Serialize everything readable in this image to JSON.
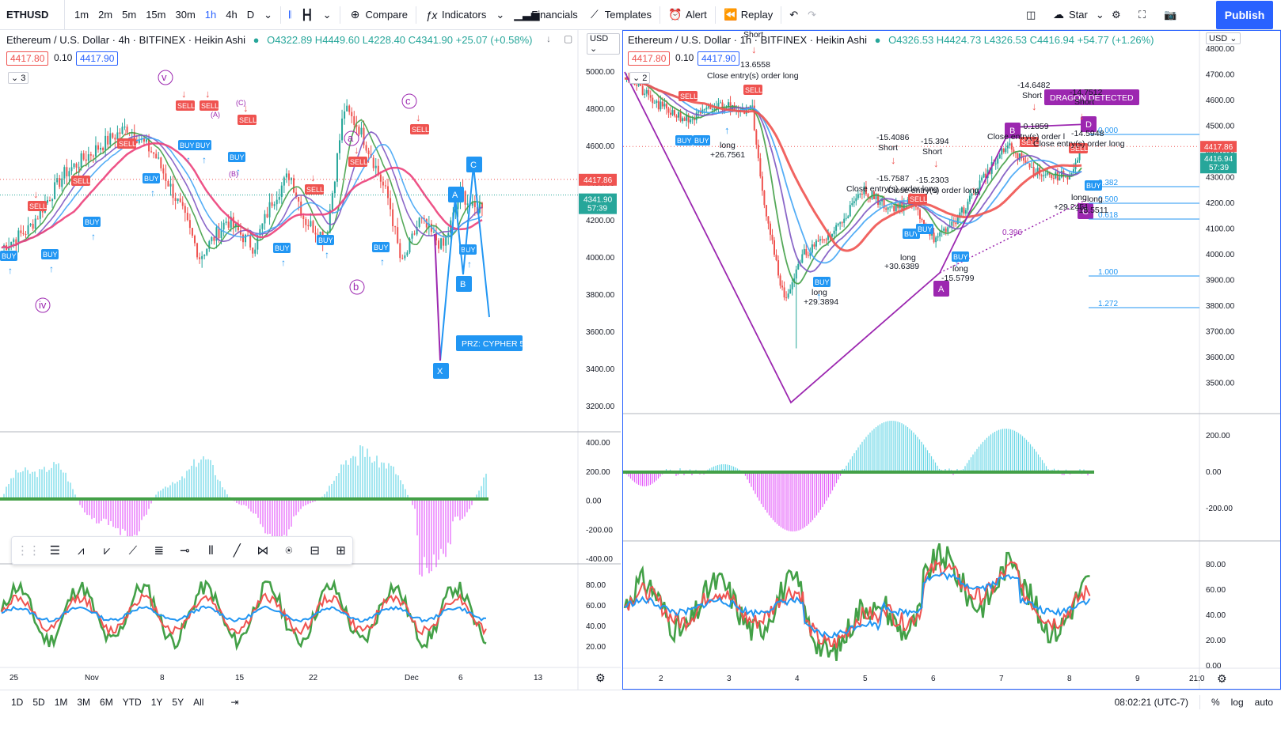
{
  "toolbar": {
    "symbol": "ETHUSD",
    "intervals": [
      "1m",
      "2m",
      "5m",
      "15m",
      "30m",
      "1h",
      "4h",
      "D"
    ],
    "active_interval": "1h",
    "compare": "Compare",
    "indicators": "Indicators",
    "financials": "Financials",
    "templates": "Templates",
    "alert": "Alert",
    "replay": "Replay",
    "star": "Star",
    "publish": "Publish"
  },
  "left_chart": {
    "title": "Ethereum / U.S. Dollar · 4h · BITFINEX · Heikin Ashi",
    "ohlc": "O4322.89 H4449.60 L4228.40 C4341.90 +25.07 (+0.58%)",
    "bid": "4417.80",
    "spread": "0.10",
    "ask": "4417.90",
    "collapse_count": "3",
    "currency": "USD",
    "price_axis": [
      "5000.00",
      "4800.00",
      "4600.00",
      "4400.00",
      "4200.00",
      "4000.00",
      "3800.00",
      "3600.00",
      "3400.00",
      "3200.00"
    ],
    "last_price": "4417.86",
    "last_close": "4341.90",
    "countdown": "57:39",
    "osc_axis": [
      "400.00",
      "200.00",
      "0.00",
      "-200.00",
      "-400.00"
    ],
    "rsi_axis": [
      "80.00",
      "60.00",
      "40.00",
      "20.00"
    ],
    "time_axis": [
      "25",
      "Nov",
      "8",
      "15",
      "22",
      "Dec",
      "6",
      "13"
    ],
    "wave_labels": [
      "iv",
      "v",
      "a",
      "b",
      "c",
      "(C)",
      "(B)",
      "(A)"
    ],
    "pattern_labels": [
      "X",
      "A",
      "B",
      "C"
    ],
    "prz_label": "PRZ: CYPHER 5",
    "buy": "BUY",
    "sell": "SELL"
  },
  "right_chart": {
    "title": "Ethereum / U.S. Dollar · 1h · BITFINEX · Heikin Ashi",
    "ohlc": "O4326.53 H4424.73 L4326.53 C4416.94 +54.77 (+1.26%)",
    "bid": "4417.80",
    "spread": "0.10",
    "ask": "4417.90",
    "collapse_count": "2",
    "currency": "USD",
    "price_axis": [
      "4800.00",
      "4700.00",
      "4600.00",
      "4500.00",
      "4400.00",
      "4300.00",
      "4200.00",
      "4100.00",
      "4000.00",
      "3900.00",
      "3800.00",
      "3700.00",
      "3600.00",
      "3500.00"
    ],
    "last_price": "4417.86",
    "last_close": "4416.94",
    "countdown": "57:39",
    "osc_axis": [
      "200.00",
      "0.00",
      "-200.00"
    ],
    "rsi_axis": [
      "80.00",
      "60.00",
      "40.00",
      "20.00",
      "0.00"
    ],
    "time_axis": [
      "2",
      "3",
      "4",
      "5",
      "6",
      "7",
      "8",
      "9",
      "21:0"
    ],
    "fib_levels": [
      "0.000",
      "0.382",
      "0.500",
      "0.618",
      "1.000",
      "1.272"
    ],
    "fib_low": "0.396",
    "pattern_labels": [
      "A",
      "B",
      "C",
      "D"
    ],
    "dragon": "DRAGON DETECTED",
    "annotations": [
      {
        "text": "Short",
        "id": "short-top"
      },
      {
        "text": "13.6558"
      },
      {
        "text": "Close entry(s) order long"
      },
      {
        "text": "long"
      },
      {
        "text": "+26.7561"
      },
      {
        "text": "long"
      },
      {
        "text": "+29.3894"
      },
      {
        "text": "-15.4086"
      },
      {
        "text": "Short"
      },
      {
        "text": "-15.7587"
      },
      {
        "text": "Close entry(s) order long"
      },
      {
        "text": "-15.394"
      },
      {
        "text": "Short"
      },
      {
        "text": "-15.2303"
      },
      {
        "text": "Close entry(s) order long"
      },
      {
        "text": "long"
      },
      {
        "text": "+30.6389"
      },
      {
        "text": "long"
      },
      {
        "text": "-15.5799"
      },
      {
        "text": "-14.6482"
      },
      {
        "text": "Short"
      },
      {
        "text": "-0.1859"
      },
      {
        "text": "Close entry(s) order l"
      },
      {
        "text": "-14.7512"
      },
      {
        "text": "Short"
      },
      {
        "text": "-14.5948"
      },
      {
        "text": "Close entry(s) order long"
      },
      {
        "text": "long"
      },
      {
        "text": "long"
      },
      {
        "text": "+29.2451"
      },
      {
        "text": "-15.5511"
      }
    ],
    "buy": "BUY",
    "sell": "SELL"
  },
  "bottom": {
    "ranges": [
      "1D",
      "5D",
      "1M",
      "3M",
      "6M",
      "YTD",
      "1Y",
      "5Y",
      "All"
    ],
    "clock": "08:02:21 (UTC-7)",
    "percent": "%",
    "log": "log",
    "auto": "auto"
  },
  "colors": {
    "accent": "#2962ff",
    "up": "#26a69a",
    "down": "#ef5350",
    "purple": "#9c27b0",
    "cyan": "#4dd0e1",
    "magenta": "#e040fb"
  }
}
